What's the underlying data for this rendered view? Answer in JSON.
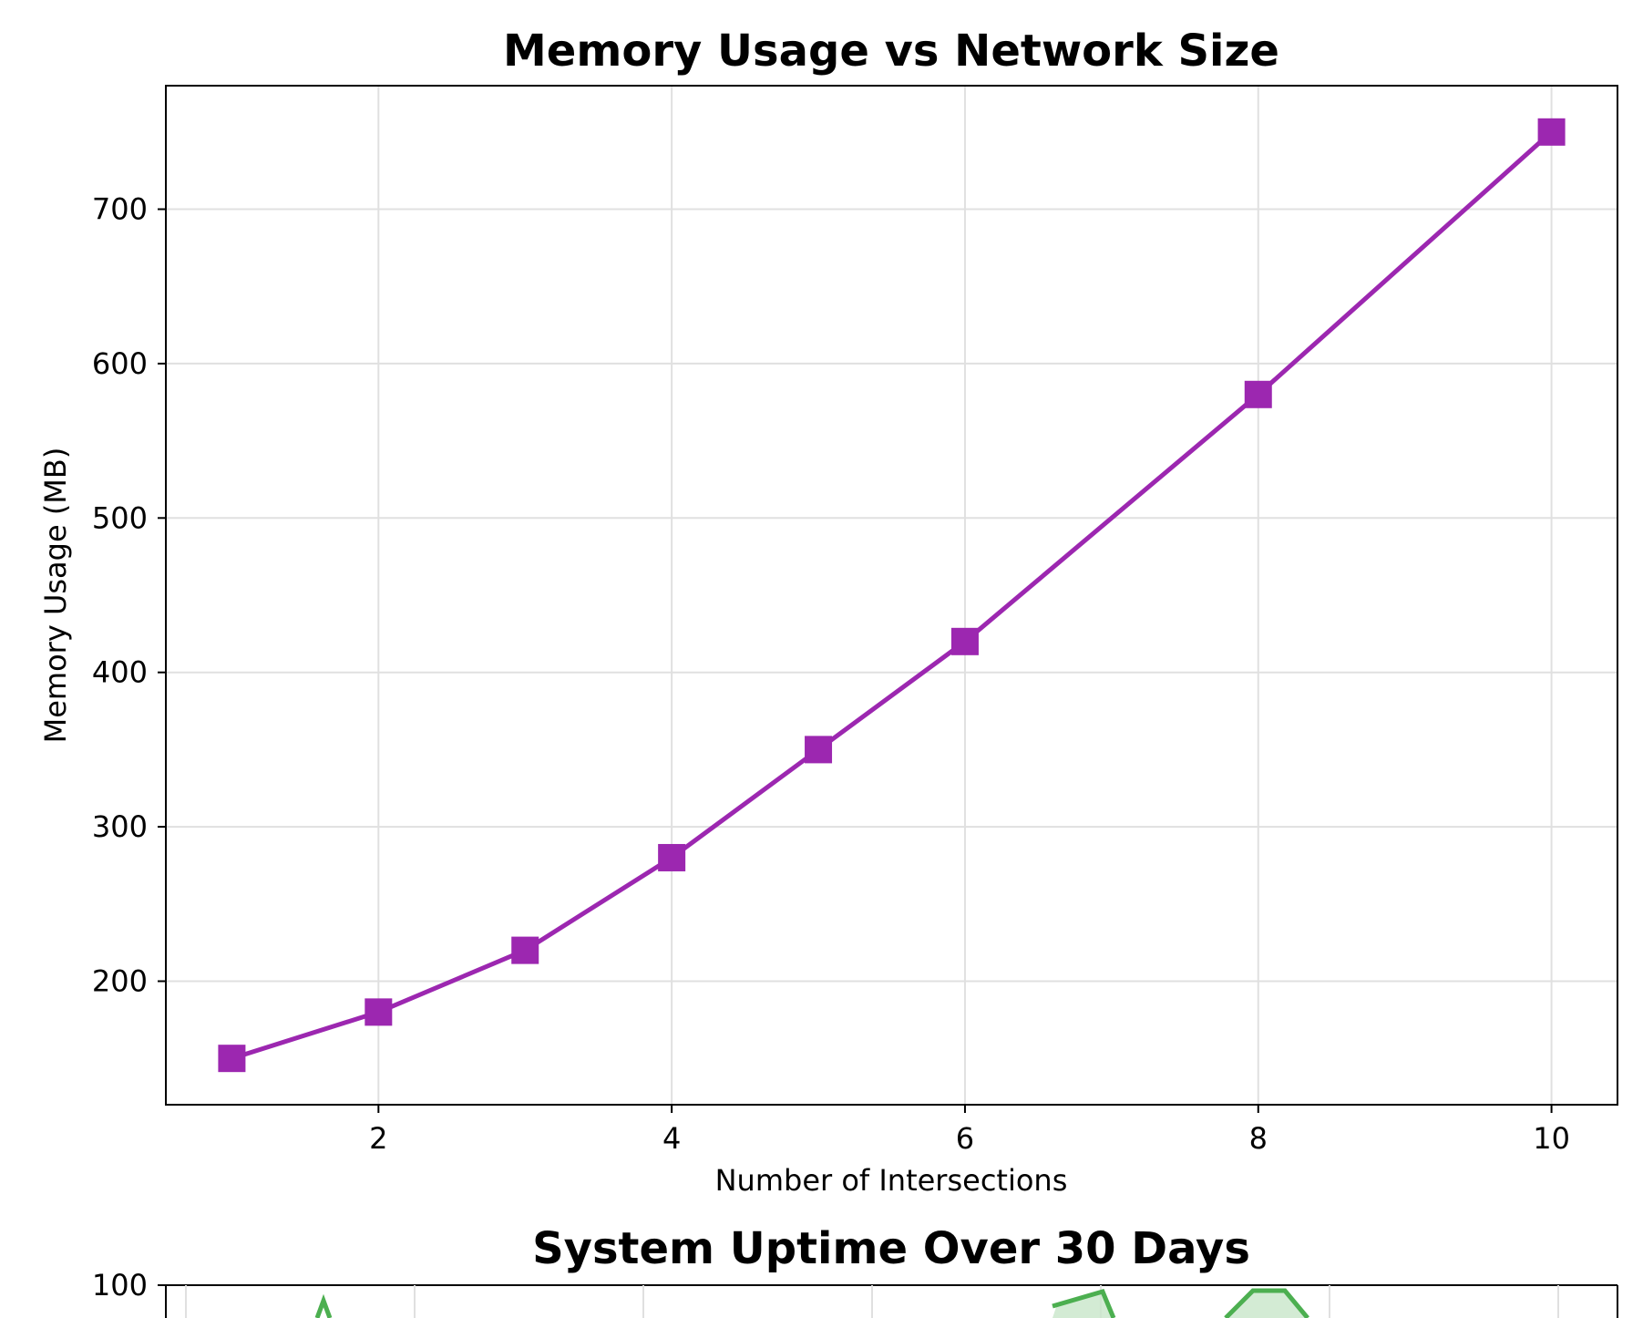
{
  "chart_data": [
    {
      "type": "line",
      "title": "Memory Usage vs Network Size",
      "xlabel": "Number of Intersections",
      "ylabel": "Memory Usage (MB)",
      "xlim": [
        0.55,
        10.45
      ],
      "ylim": [
        120,
        780
      ],
      "xticks": [
        2,
        4,
        6,
        8,
        10
      ],
      "yticks": [
        200,
        300,
        400,
        500,
        600,
        700
      ],
      "grid": true,
      "legend": "none",
      "color": "#9c27b0",
      "marker": "square",
      "x": [
        1,
        2,
        3,
        4,
        5,
        6,
        8,
        10
      ],
      "y": [
        150,
        180,
        220,
        280,
        350,
        420,
        580,
        750
      ]
    },
    {
      "type": "area",
      "title": "System Uptime Over 30 Days",
      "ylim_top": 100,
      "yticks": [
        100
      ],
      "color": "#4caf50",
      "fill_color": "#c8e6c9",
      "partially_visible": true
    }
  ]
}
